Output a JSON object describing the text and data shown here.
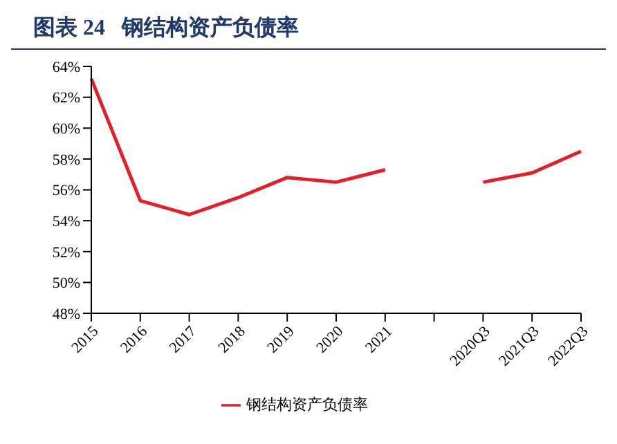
{
  "chart_data": {
    "type": "line",
    "title": "图表 24   钢结构资产负债率",
    "categories": [
      "2015",
      "2016",
      "2017",
      "2018",
      "2019",
      "2020",
      "2021",
      null,
      "2020Q3",
      "2021Q3",
      "2022Q3"
    ],
    "series": [
      {
        "name": "钢结构资产负债率",
        "color": "#e3202a",
        "values": [
          63.2,
          55.3,
          54.4,
          55.5,
          56.8,
          56.5,
          57.3,
          null,
          56.5,
          57.1,
          58.5
        ]
      }
    ],
    "ylim": [
      48,
      64
    ],
    "yticks": [
      {
        "value": 48,
        "label": "48%"
      },
      {
        "value": 50,
        "label": "50%"
      },
      {
        "value": 52,
        "label": "52%"
      },
      {
        "value": 54,
        "label": "54%"
      },
      {
        "value": 56,
        "label": "56%"
      },
      {
        "value": 58,
        "label": "58%"
      },
      {
        "value": 60,
        "label": "60%"
      },
      {
        "value": 62,
        "label": "62%"
      },
      {
        "value": 64,
        "label": "64%"
      }
    ],
    "grid": false,
    "legend": "bottom",
    "marker": "none"
  }
}
